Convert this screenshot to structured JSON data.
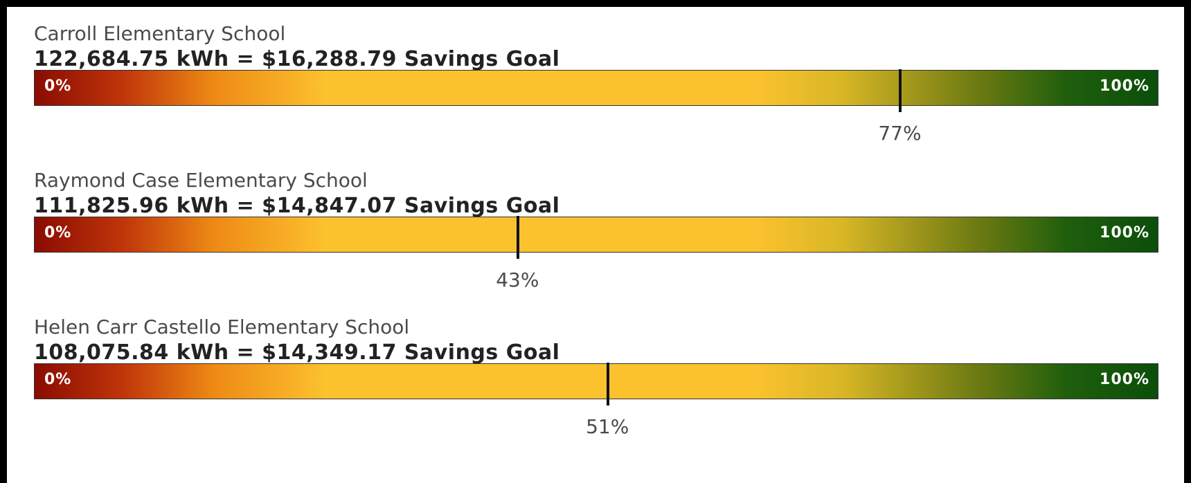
{
  "scale": {
    "min": {
      "value": 0,
      "label": "0%"
    },
    "max": {
      "value": 100,
      "label": "100%"
    }
  },
  "schools": [
    {
      "name": "Carroll Elementary School",
      "goal": "122,684.75 kWh = $16,288.79 Savings Goal",
      "progress": {
        "value": 77,
        "label": "77%"
      }
    },
    {
      "name": "Raymond Case Elementary School",
      "goal": "111,825.96 kWh = $14,847.07 Savings Goal",
      "progress": {
        "value": 43,
        "label": "43%"
      }
    },
    {
      "name": "Helen Carr Castello Elementary School",
      "goal": "108,075.84 kWh = $14,349.17 Savings Goal",
      "progress": {
        "value": 51,
        "label": "51%"
      }
    }
  ]
}
